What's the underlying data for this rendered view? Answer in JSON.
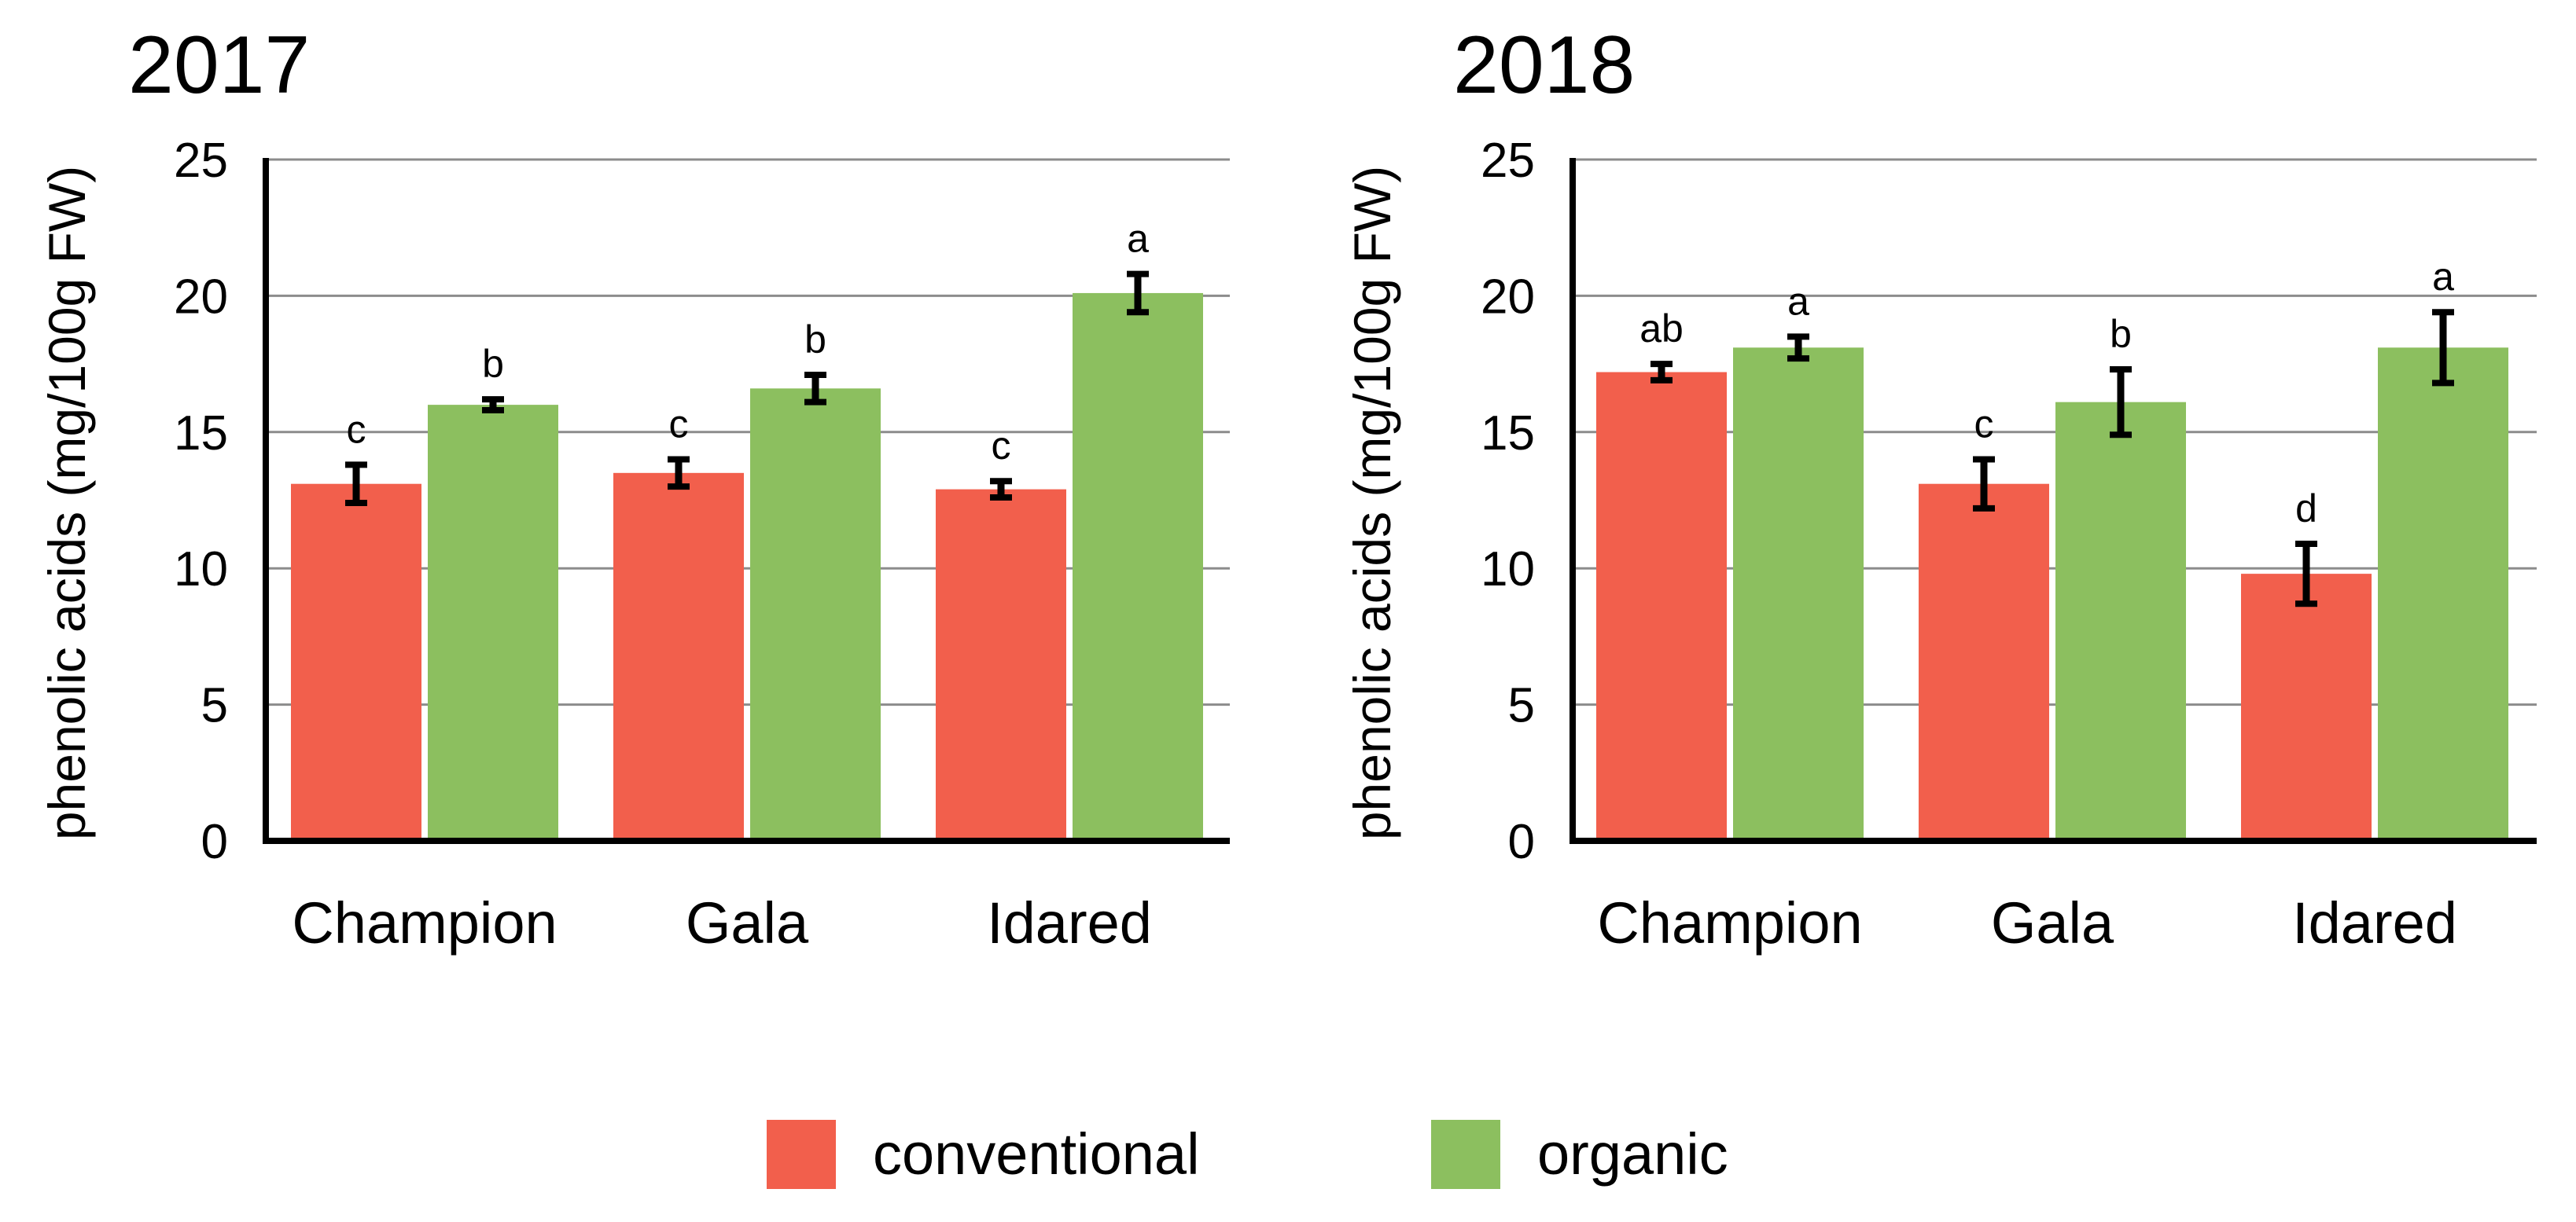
{
  "chart_data": [
    {
      "type": "bar",
      "title": "2017",
      "xlabel": "",
      "ylabel": "phenolic acids (mg/100g FW)",
      "ylim": [
        0,
        25
      ],
      "yticks": [
        0,
        5,
        10,
        15,
        20,
        25
      ],
      "grid": true,
      "categories": [
        "Champion",
        "Gala",
        "Idared"
      ],
      "series": [
        {
          "name": "conventional",
          "color": "#F25F4C",
          "values": [
            13.1,
            13.5,
            12.9
          ],
          "errors": [
            0.7,
            0.5,
            0.3
          ],
          "labels": [
            "c",
            "c",
            "c"
          ]
        },
        {
          "name": "organic",
          "color": "#8CBF5F",
          "values": [
            16.0,
            16.6,
            20.1
          ],
          "errors": [
            0.2,
            0.5,
            0.7
          ],
          "labels": [
            "b",
            "b",
            "a"
          ]
        }
      ]
    },
    {
      "type": "bar",
      "title": "2018",
      "xlabel": "",
      "ylabel": "phenolic acids (mg/100g FW)",
      "ylim": [
        0,
        25
      ],
      "yticks": [
        0,
        5,
        10,
        15,
        20,
        25
      ],
      "grid": true,
      "categories": [
        "Champion",
        "Gala",
        "Idared"
      ],
      "series": [
        {
          "name": "conventional",
          "color": "#F25F4C",
          "values": [
            17.2,
            13.1,
            9.8
          ],
          "errors": [
            0.3,
            0.9,
            1.1
          ],
          "labels": [
            "ab",
            "c",
            "d"
          ]
        },
        {
          "name": "organic",
          "color": "#8CBF5F",
          "values": [
            18.1,
            16.1,
            18.1
          ],
          "errors": [
            0.4,
            1.2,
            1.3
          ],
          "labels": [
            "a",
            "b",
            "a"
          ]
        }
      ]
    }
  ],
  "legend": [
    {
      "label": "conventional",
      "color": "#F25F4C"
    },
    {
      "label": "organic",
      "color": "#8CBF5F"
    }
  ]
}
